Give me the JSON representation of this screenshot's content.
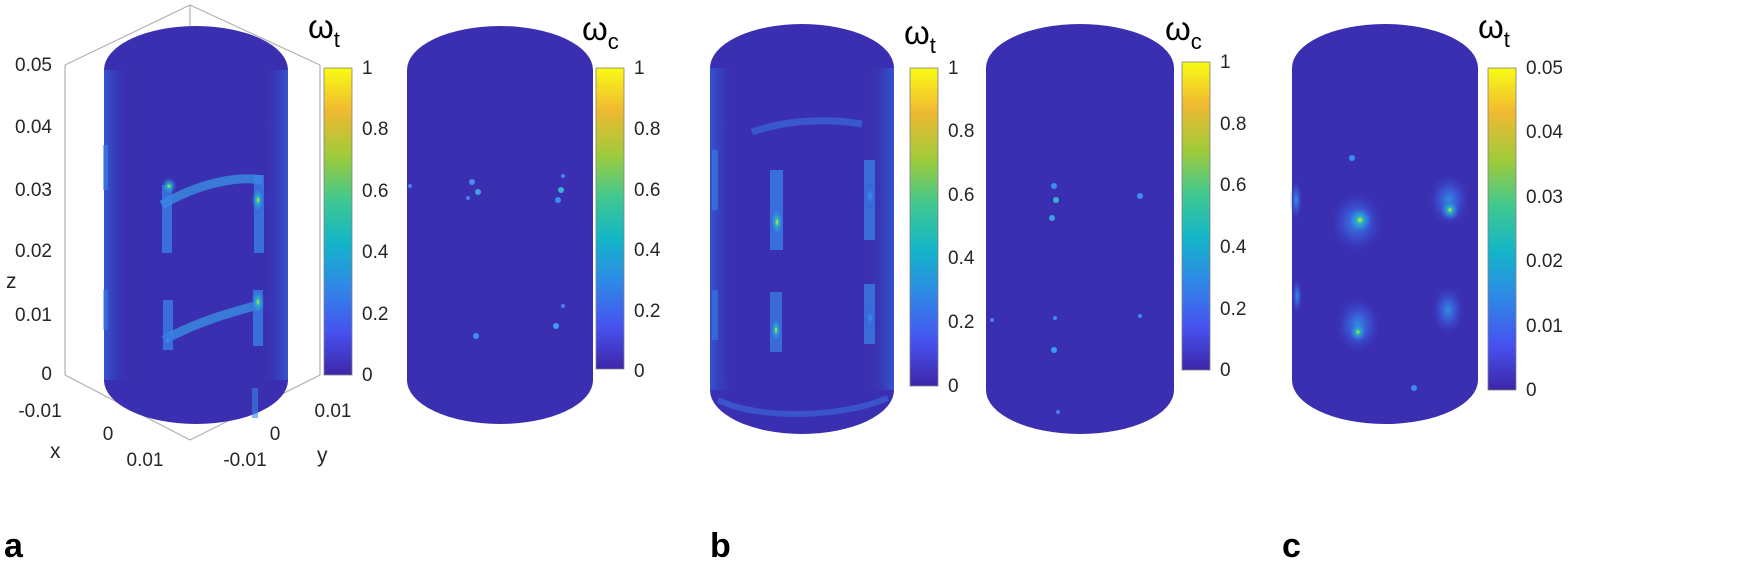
{
  "chart_data": [
    {
      "type": "heatmap",
      "panel_label": "a",
      "views": [
        {
          "colorbar": {
            "symbol": "ω",
            "subscript": "t",
            "ticks": [
              "0",
              "0.2",
              "0.4",
              "0.6",
              "0.8",
              "1"
            ],
            "clim": [
              0,
              1
            ]
          },
          "axes": {
            "zlabel": "z",
            "xlabel": "x",
            "ylabel": "y",
            "zticks": [
              "0",
              "0.01",
              "0.02",
              "0.03",
              "0.04",
              "0.05"
            ],
            "xticks": [
              "-0.01",
              "0",
              "0.01"
            ],
            "yticks": [
              "-0.01",
              "0",
              "0.01"
            ]
          }
        },
        {
          "colorbar": {
            "symbol": "ω",
            "subscript": "c",
            "ticks": [
              "0",
              "0.2",
              "0.4",
              "0.6",
              "0.8",
              "1"
            ],
            "clim": [
              0,
              1
            ]
          }
        }
      ]
    },
    {
      "type": "heatmap",
      "panel_label": "b",
      "views": [
        {
          "colorbar": {
            "symbol": "ω",
            "subscript": "t",
            "ticks": [
              "0",
              "0.2",
              "0.4",
              "0.6",
              "0.8",
              "1"
            ],
            "clim": [
              0,
              1
            ]
          }
        },
        {
          "colorbar": {
            "symbol": "ω",
            "subscript": "c",
            "ticks": [
              "0",
              "0.2",
              "0.4",
              "0.6",
              "0.8",
              "1"
            ],
            "clim": [
              0,
              1
            ]
          }
        }
      ]
    },
    {
      "type": "heatmap",
      "panel_label": "c",
      "views": [
        {
          "colorbar": {
            "symbol": "ω",
            "subscript": "t",
            "ticks": [
              "0",
              "0.01",
              "0.02",
              "0.03",
              "0.04",
              "0.05"
            ],
            "clim": [
              0,
              0.05
            ]
          }
        }
      ]
    }
  ],
  "colors": {
    "base": "#3a2fb0",
    "colormap": [
      "#3e26a8",
      "#4652f0",
      "#2f89e6",
      "#13b5c8",
      "#40c890",
      "#9dcb3b",
      "#f0b931",
      "#f9fb15"
    ]
  }
}
